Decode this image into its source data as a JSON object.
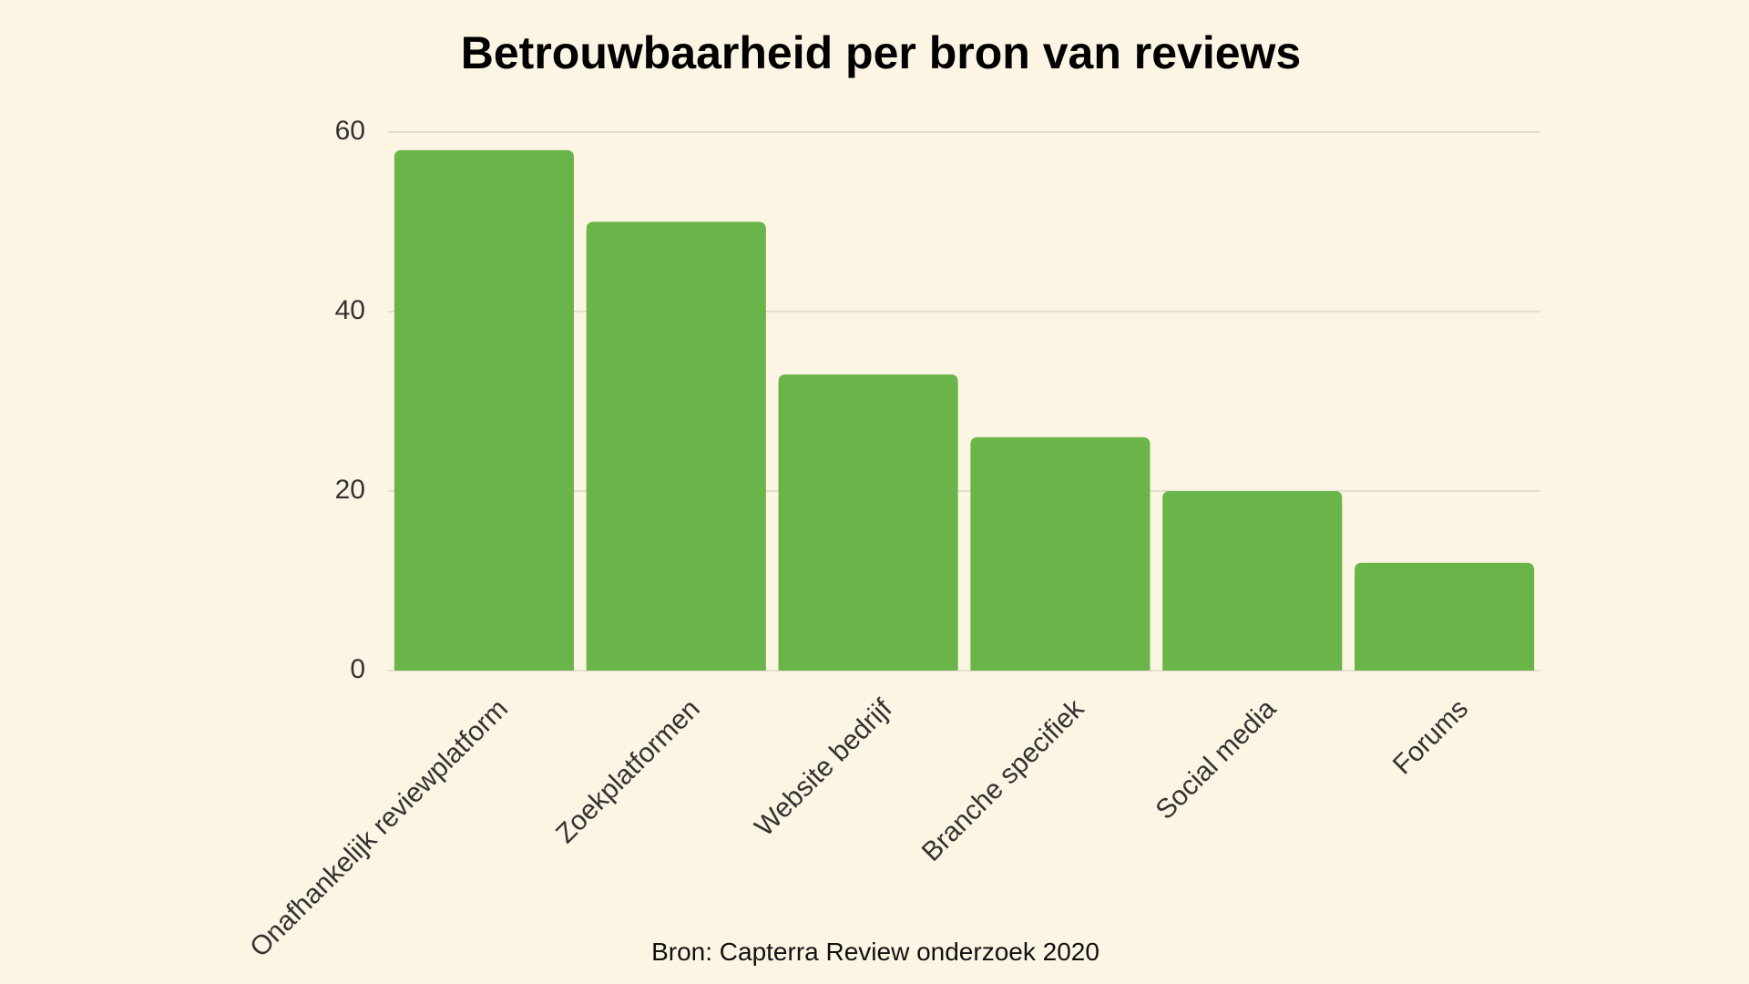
{
  "chart_data": {
    "type": "bar",
    "title": "Betrouwbaarheid per bron van reviews",
    "categories": [
      "Onafhankelijk reviewplatform",
      "Zoekplatformen",
      "Website bedrijf",
      "Branche specifiek",
      "Social media",
      "Forums"
    ],
    "values": [
      58,
      50,
      33,
      26,
      20,
      12
    ],
    "color": "#6ab54a",
    "ylim": [
      0,
      60
    ],
    "yticks": [
      0,
      20,
      40,
      60
    ],
    "grid": true,
    "source": "Bron: Capterra Review onderzoek 2020"
  }
}
